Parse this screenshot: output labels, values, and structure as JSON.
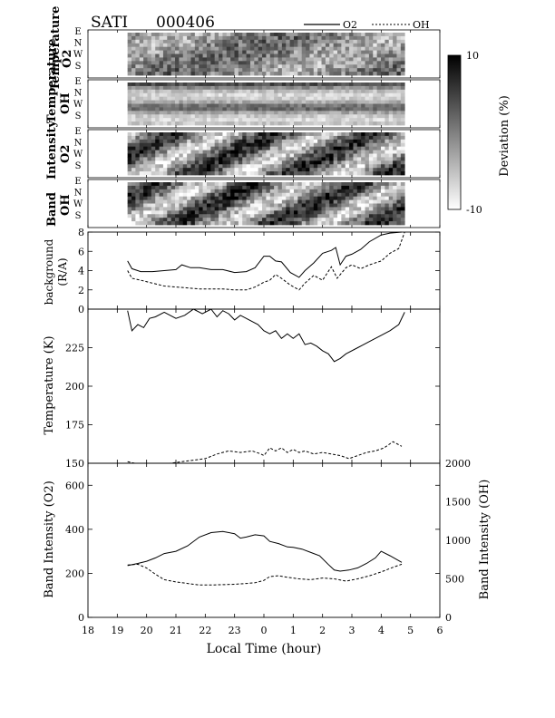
{
  "header": {
    "instrument": "SATI",
    "date": "000406"
  },
  "legend": {
    "o2_label": "O2",
    "oh_label": "OH"
  },
  "xaxis": {
    "label": "Local Time (hour)",
    "ticks": [
      "18",
      "19",
      "20",
      "21",
      "22",
      "23",
      "0",
      "1",
      "2",
      "3",
      "4",
      "5",
      "6"
    ]
  },
  "keogram_directions": [
    "E",
    "N",
    "W",
    "S"
  ],
  "keograms": [
    {
      "title_top": "Temperature",
      "title_bottom": "O2"
    },
    {
      "title_top": "Temperature",
      "title_bottom": "OH"
    },
    {
      "title_top": "Intensity",
      "title_bottom": "O2"
    },
    {
      "title_top": "Band",
      "title_bottom": "OH"
    }
  ],
  "colorbar": {
    "label": "Deviation (%)",
    "max_label": "10",
    "min_label": "-10",
    "range": [
      -10,
      10
    ]
  },
  "panels": {
    "background": {
      "ylabel_top": "background",
      "ylabel_bottom": "(R/A)",
      "yticks": [
        "0",
        "2",
        "4",
        "6",
        "8"
      ]
    },
    "temperature": {
      "ylabel": "Temperature (K)",
      "yticks": [
        "150",
        "175",
        "200",
        "225"
      ]
    },
    "intensity": {
      "ylabel_left": "Band Intensity (O2)",
      "ylabel_right": "Band Intensity (OH)",
      "yticks_left": [
        "0",
        "200",
        "400",
        "600"
      ],
      "yticks_right": [
        "0",
        "500",
        "1000",
        "1500",
        "2000"
      ]
    }
  },
  "chart_data": {
    "type": "line",
    "title": "SATI 000406",
    "xlabel": "Local Time (hour)",
    "xlim": [
      18,
      30
    ],
    "series_names": [
      "O2",
      "OH"
    ],
    "panels": [
      {
        "name": "background",
        "ylim": [
          0,
          8
        ],
        "series": [
          {
            "name": "O2",
            "style": "solid",
            "x": [
              19.35,
              19.5,
              19.8,
              20.2,
              20.6,
              21.0,
              21.2,
              21.5,
              21.8,
              22.2,
              22.6,
              23.0,
              23.4,
              23.7,
              24.0,
              24.2,
              24.4,
              24.6,
              24.9,
              25.2,
              25.4,
              25.7,
              26.0,
              26.3,
              26.45,
              26.6,
              26.8,
              27.0,
              27.3,
              27.6,
              28.0,
              28.3,
              28.7
            ],
            "y": [
              5.0,
              4.2,
              3.9,
              3.9,
              4.0,
              4.1,
              4.6,
              4.3,
              4.3,
              4.1,
              4.1,
              3.8,
              3.9,
              4.3,
              5.5,
              5.5,
              5.0,
              4.9,
              3.8,
              3.3,
              4.0,
              4.8,
              5.8,
              6.1,
              6.4,
              4.6,
              5.5,
              5.7,
              6.2,
              7.0,
              7.7,
              7.9,
              8.0
            ]
          },
          {
            "name": "OH",
            "style": "dashed",
            "x": [
              19.35,
              19.5,
              19.8,
              20.2,
              20.6,
              21.0,
              21.4,
              21.8,
              22.2,
              22.6,
              23.0,
              23.4,
              23.7,
              24.0,
              24.2,
              24.4,
              24.6,
              24.9,
              25.2,
              25.4,
              25.7,
              26.0,
              26.3,
              26.5,
              26.8,
              27.0,
              27.3,
              27.6,
              28.0,
              28.3,
              28.6,
              28.8
            ],
            "y": [
              4.0,
              3.2,
              3.0,
              2.7,
              2.4,
              2.3,
              2.2,
              2.1,
              2.1,
              2.1,
              2.0,
              2.0,
              2.3,
              2.8,
              3.0,
              3.6,
              3.2,
              2.5,
              2.0,
              2.7,
              3.5,
              3.0,
              4.4,
              3.2,
              4.3,
              4.6,
              4.2,
              4.6,
              5.0,
              5.8,
              6.3,
              8.0
            ]
          }
        ]
      },
      {
        "name": "temperature",
        "ylim": [
          150,
          250
        ],
        "series": [
          {
            "name": "O2",
            "style": "solid",
            "x": [
              19.35,
              19.5,
              19.7,
              19.9,
              20.1,
              20.3,
              20.6,
              21.0,
              21.3,
              21.6,
              21.9,
              22.2,
              22.4,
              22.6,
              22.8,
              23.0,
              23.2,
              23.5,
              23.8,
              24.0,
              24.2,
              24.4,
              24.6,
              24.8,
              25.0,
              25.2,
              25.4,
              25.6,
              25.8,
              26.0,
              26.2,
              26.4,
              26.6,
              26.8,
              27.2,
              27.6,
              28.0,
              28.3,
              28.6,
              28.8
            ],
            "y": [
              249,
              236,
              240,
              238,
              244,
              245,
              248,
              244,
              246,
              250,
              247,
              250,
              245,
              249,
              247,
              243,
              246,
              243,
              240,
              236,
              234,
              236,
              231,
              234,
              231,
              234,
              227,
              228,
              226,
              223,
              221,
              216,
              218,
              221,
              225,
              229,
              233,
              236,
              240,
              248
            ]
          },
          {
            "name": "OH",
            "style": "dashed",
            "x": [
              19.35,
              19.6,
              20.0,
              20.4,
              20.8,
              21.2,
              21.6,
              22.0,
              22.4,
              22.8,
              23.2,
              23.6,
              23.9,
              24.0,
              24.2,
              24.4,
              24.6,
              24.8,
              25.0,
              25.2,
              25.4,
              25.7,
              26.0,
              26.3,
              26.6,
              26.9,
              27.2,
              27.5,
              27.8,
              28.1,
              28.4,
              28.7
            ],
            "y": [
              151,
              150,
              150,
              150,
              150,
              151,
              152,
              153,
              156,
              158,
              157,
              158,
              156,
              155,
              160,
              158,
              160,
              157,
              159,
              157,
              158,
              156,
              157,
              156,
              155,
              153,
              155,
              157,
              158,
              160,
              164,
              161
            ]
          }
        ]
      },
      {
        "name": "band_intensity",
        "ylim_left": [
          0,
          700
        ],
        "ylim_right": [
          0,
          2000
        ],
        "series": [
          {
            "name": "O2",
            "style": "solid",
            "axis": "left",
            "x": [
              19.35,
              19.7,
              20.0,
              20.3,
              20.6,
              21.0,
              21.4,
              21.8,
              22.2,
              22.6,
              23.0,
              23.2,
              23.4,
              23.7,
              24.0,
              24.2,
              24.5,
              24.8,
              25.0,
              25.3,
              25.6,
              25.9,
              26.2,
              26.4,
              26.6,
              26.9,
              27.2,
              27.5,
              27.8,
              28.0,
              28.3,
              28.7
            ],
            "y": [
              235,
              245,
              255,
              270,
              290,
              300,
              325,
              365,
              385,
              390,
              380,
              360,
              365,
              375,
              370,
              345,
              335,
              320,
              318,
              310,
              295,
              280,
              240,
              215,
              210,
              215,
              225,
              245,
              270,
              300,
              280,
              250
            ]
          },
          {
            "name": "OH",
            "style": "dashed",
            "axis": "right",
            "x": [
              19.35,
              19.7,
              20.0,
              20.3,
              20.6,
              21.0,
              21.4,
              21.8,
              22.2,
              22.6,
              23.0,
              23.4,
              23.7,
              24.0,
              24.2,
              24.5,
              24.8,
              25.2,
              25.6,
              26.0,
              26.4,
              26.8,
              27.2,
              27.6,
              28.0,
              28.4,
              28.7
            ],
            "y": [
              680,
              690,
              640,
              560,
              490,
              460,
              440,
              420,
              420,
              425,
              430,
              440,
              450,
              480,
              530,
              540,
              520,
              500,
              490,
              510,
              500,
              470,
              500,
              540,
              590,
              650,
              690
            ]
          }
        ]
      }
    ]
  }
}
